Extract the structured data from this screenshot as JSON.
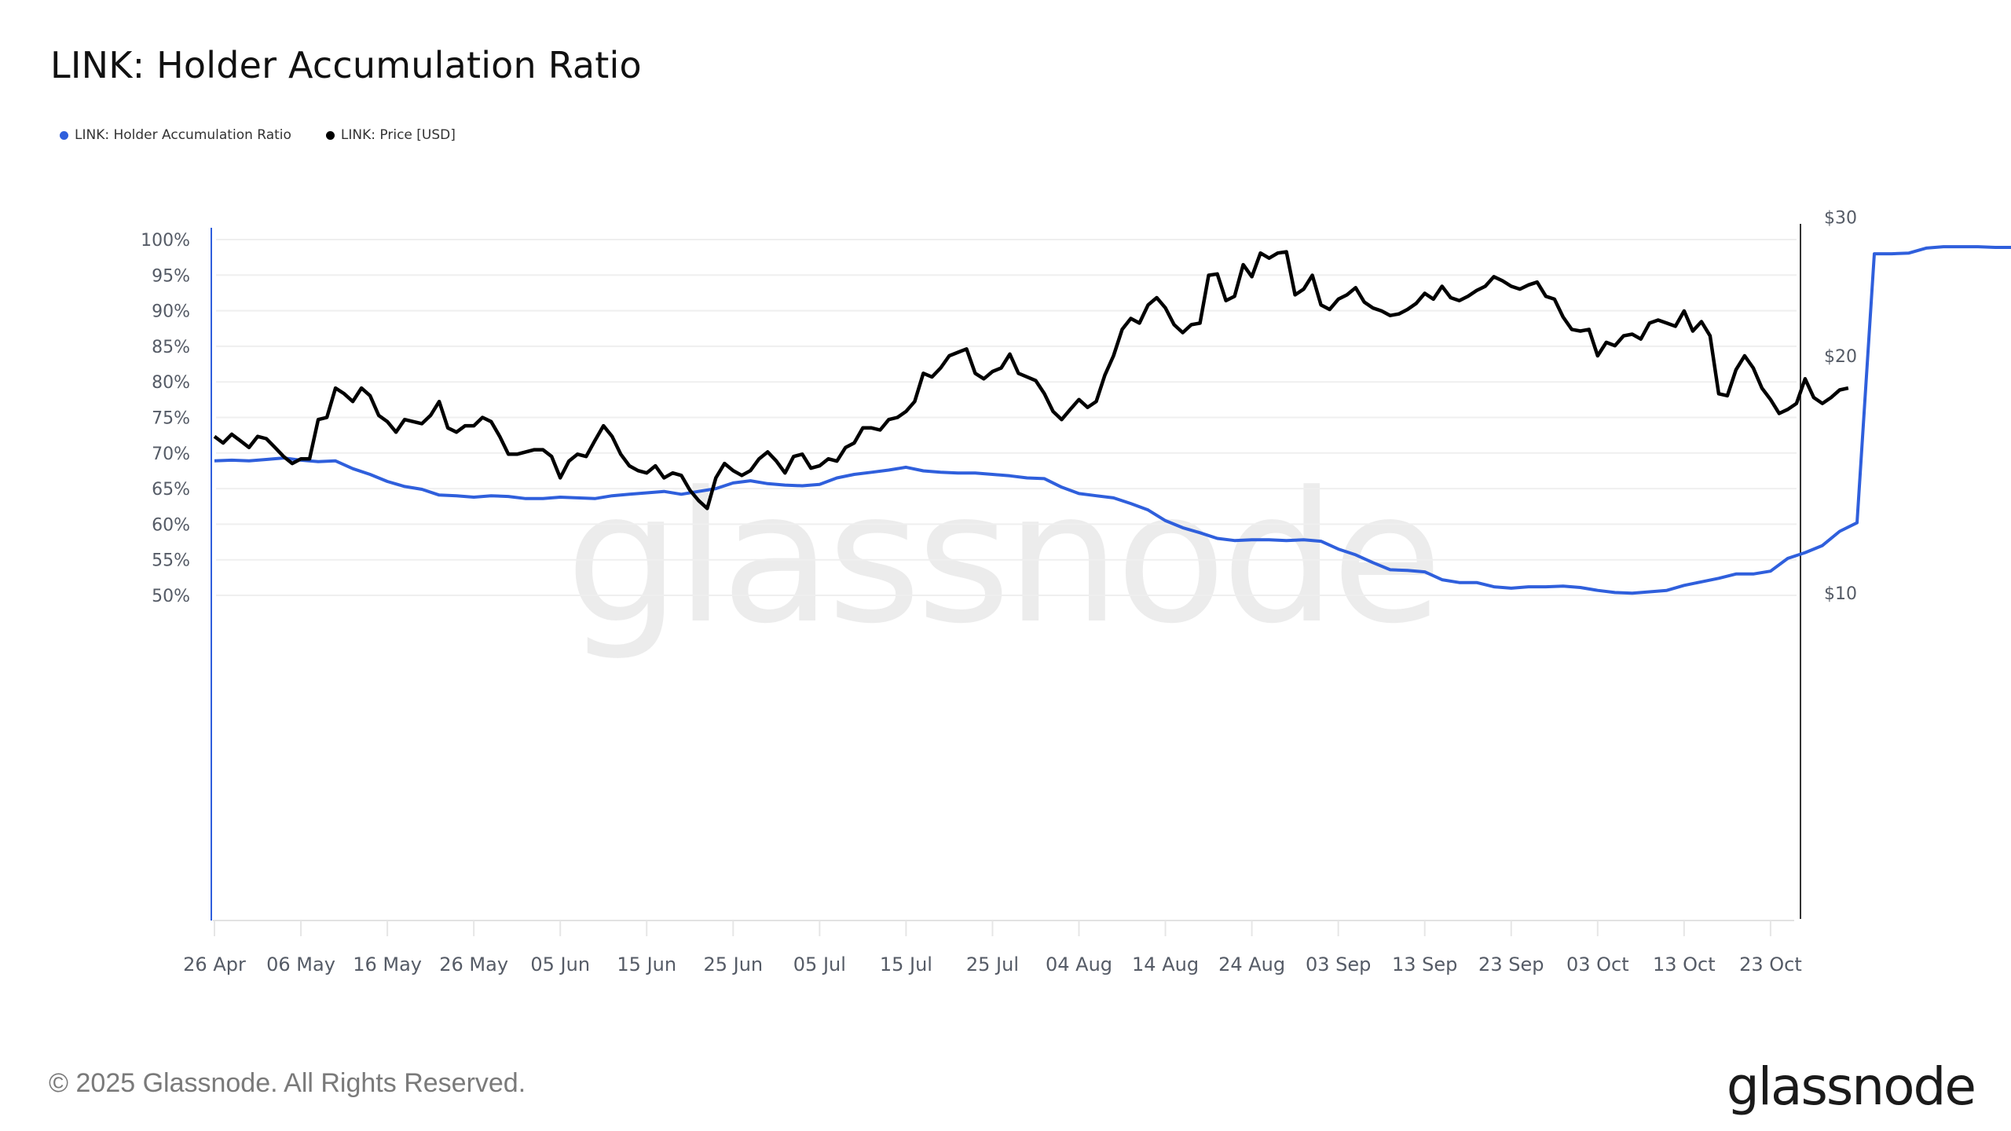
{
  "title": "LINK: Holder Accumulation Ratio",
  "legend": [
    {
      "label": "LINK: Holder Accumulation Ratio",
      "color": "#2f5fdc"
    },
    {
      "label": "LINK: Price [USD]",
      "color": "#000000"
    }
  ],
  "watermark": "glassnode",
  "footer": {
    "copyright": "© 2025 Glassnode. All Rights Reserved.",
    "logo": "glassnode"
  },
  "chart_data": {
    "type": "line",
    "title": "LINK: Holder Accumulation Ratio",
    "xlabel": "",
    "ylabel_left": "Holder Accumulation Ratio",
    "ylabel_right": "Price [USD]",
    "x_start": "26 Apr",
    "x_end": "26 Oct",
    "x_ticks": [
      "26 Apr",
      "06 May",
      "16 May",
      "26 May",
      "05 Jun",
      "15 Jun",
      "25 Jun",
      "05 Jul",
      "15 Jul",
      "25 Jul",
      "04 Aug",
      "14 Aug",
      "24 Aug",
      "03 Sep",
      "13 Sep",
      "23 Sep",
      "03 Oct",
      "13 Oct",
      "23 Oct"
    ],
    "y_left_ticks": [
      "50%",
      "55%",
      "60%",
      "65%",
      "70%",
      "75%",
      "80%",
      "85%",
      "90%",
      "95%",
      "100%"
    ],
    "y_left_range": [
      47,
      102
    ],
    "y_right_ticks": [
      "$10",
      "$20",
      "$30"
    ],
    "y_right_scale": "log",
    "y_right_range": [
      10,
      30
    ],
    "grid": true,
    "legend_position": "top-left",
    "series": [
      {
        "name": "LINK: Holder Accumulation Ratio",
        "axis": "left",
        "unit": "%",
        "color": "#2f5fdc",
        "step_days": 2,
        "values": [
          68.9,
          69.0,
          68.9,
          69.1,
          69.3,
          69.0,
          68.8,
          68.9,
          67.8,
          67.0,
          66.0,
          65.3,
          64.9,
          64.1,
          64.0,
          63.8,
          64.0,
          63.9,
          63.6,
          63.6,
          63.8,
          63.7,
          63.6,
          64.0,
          64.2,
          64.4,
          64.6,
          64.2,
          64.6,
          65.0,
          65.8,
          66.1,
          65.7,
          65.5,
          65.4,
          65.6,
          66.5,
          67.0,
          67.3,
          67.6,
          68.0,
          67.5,
          67.3,
          67.2,
          67.2,
          67.0,
          66.8,
          66.5,
          66.4,
          65.2,
          64.3,
          64.0,
          63.7,
          62.9,
          62.0,
          60.5,
          59.5,
          58.8,
          58.0,
          57.7,
          57.8,
          57.8,
          57.7,
          57.8,
          57.6,
          56.5,
          55.7,
          54.6,
          53.6,
          53.5,
          53.3,
          52.2,
          51.8,
          51.8,
          51.2,
          51.0,
          51.2,
          51.2,
          51.3,
          51.1,
          50.7,
          50.4,
          50.3,
          50.5,
          50.7,
          51.4,
          51.9,
          52.4,
          53.0,
          53.0,
          53.4,
          55.2,
          56.0,
          57.0,
          59.0,
          60.2,
          98.0,
          98.0,
          98.1,
          98.8,
          99.0,
          99.0,
          99.0,
          98.9,
          98.9,
          98.9,
          99.0,
          99.0,
          99.0,
          99.0,
          99.0,
          99.0,
          99.0,
          99.0,
          99.0,
          99.0,
          99.0,
          99.0,
          99.0,
          99.0,
          98.3,
          98.0,
          98.0
        ]
      },
      {
        "name": "LINK: Price [USD]",
        "axis": "right",
        "unit": "USD",
        "color": "#000000",
        "step_days": 1,
        "values": [
          15.8,
          15.5,
          15.9,
          15.6,
          15.3,
          15.8,
          15.7,
          15.3,
          14.9,
          14.6,
          14.8,
          14.8,
          16.6,
          16.7,
          18.2,
          17.9,
          17.5,
          18.2,
          17.8,
          16.8,
          16.5,
          16.0,
          16.6,
          16.5,
          16.4,
          16.8,
          17.5,
          16.2,
          16.0,
          16.3,
          16.3,
          16.7,
          16.5,
          15.8,
          15.0,
          15.0,
          15.1,
          15.2,
          15.2,
          14.9,
          14.0,
          14.7,
          15.0,
          14.9,
          15.6,
          16.3,
          15.8,
          15.0,
          14.5,
          14.3,
          14.2,
          14.5,
          14.0,
          14.2,
          14.1,
          13.5,
          13.1,
          12.8,
          14.0,
          14.6,
          14.3,
          14.1,
          14.3,
          14.8,
          15.1,
          14.7,
          14.2,
          14.9,
          15.0,
          14.4,
          14.5,
          14.8,
          14.7,
          15.3,
          15.5,
          16.2,
          16.2,
          16.1,
          16.6,
          16.7,
          17.0,
          17.5,
          19.0,
          18.8,
          19.3,
          20.0,
          20.2,
          20.4,
          19.0,
          18.7,
          19.1,
          19.3,
          20.1,
          19.0,
          18.8,
          18.6,
          17.9,
          17.0,
          16.6,
          17.1,
          17.6,
          17.2,
          17.5,
          18.9,
          20.0,
          21.6,
          22.3,
          22.0,
          23.2,
          23.7,
          23.0,
          21.9,
          21.4,
          21.9,
          22.0,
          25.3,
          25.4,
          23.5,
          23.8,
          26.1,
          25.2,
          27.0,
          26.6,
          27.0,
          27.1,
          23.9,
          24.3,
          25.3,
          23.2,
          22.9,
          23.6,
          23.9,
          24.4,
          23.4,
          23.0,
          22.8,
          22.5,
          22.6,
          22.9,
          23.3,
          24.0,
          23.6,
          24.5,
          23.7,
          23.5,
          23.8,
          24.2,
          24.5,
          25.2,
          24.9,
          24.5,
          24.3,
          24.6,
          24.8,
          23.8,
          23.6,
          22.4,
          21.6,
          21.5,
          21.6,
          20.0,
          20.8,
          20.6,
          21.2,
          21.3,
          21.0,
          22.0,
          22.2,
          22.0,
          21.8,
          22.8,
          21.5,
          22.1,
          21.2,
          17.9,
          17.8,
          19.2,
          20.0,
          19.3,
          18.2,
          17.6,
          16.9,
          17.1,
          17.4,
          18.7,
          17.7,
          17.4,
          17.7,
          18.1,
          18.2
        ]
      }
    ]
  }
}
